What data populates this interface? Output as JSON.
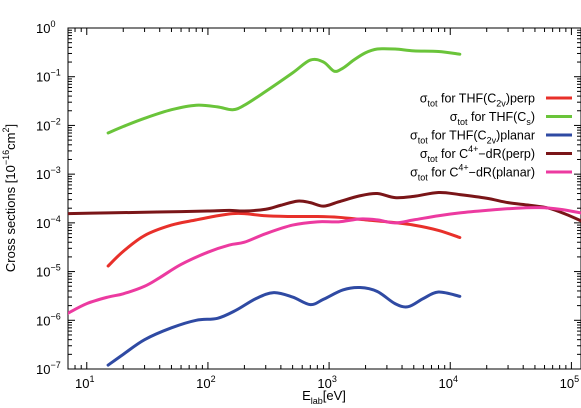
{
  "chart_data": {
    "type": "line",
    "xlabel": {
      "base": "E",
      "sub": "lab",
      "unit": "[eV]"
    },
    "ylabel": {
      "pre": "Cross sections [10",
      "sup": "−16",
      "mid": "cm",
      "sup2": "2",
      "post": "]"
    },
    "xscale": "log",
    "yscale": "log",
    "xlim": [
      7,
      120000
    ],
    "ylim": [
      1e-07,
      1
    ],
    "x_ticks": [
      {
        "base": "10",
        "exp": "1",
        "value": 10
      },
      {
        "base": "10",
        "exp": "2",
        "value": 100
      },
      {
        "base": "10",
        "exp": "3",
        "value": 1000
      },
      {
        "base": "10",
        "exp": "4",
        "value": 10000
      },
      {
        "base": "10",
        "exp": "5",
        "value": 100000
      }
    ],
    "y_ticks": [
      {
        "base": "10",
        "exp": "0",
        "value": 1
      },
      {
        "base": "10",
        "exp": "−1",
        "value": 0.1
      },
      {
        "base": "10",
        "exp": "−2",
        "value": 0.01
      },
      {
        "base": "10",
        "exp": "−3",
        "value": 0.001
      },
      {
        "base": "10",
        "exp": "−4",
        "value": 0.0001
      },
      {
        "base": "10",
        "exp": "−5",
        "value": 1e-05
      },
      {
        "base": "10",
        "exp": "−6",
        "value": 1e-06
      },
      {
        "base": "10",
        "exp": "−7",
        "value": 1e-07
      }
    ],
    "grid": false,
    "legend_position": "top-right",
    "series": [
      {
        "legend": {
          "sym": "σ",
          "symsub": "tot",
          "text": " for THF(C",
          "sub": "2v",
          "tail": ")perp"
        },
        "color": "#e8302a",
        "points": [
          [
            15,
            1.3e-05
          ],
          [
            20,
            2.6e-05
          ],
          [
            30,
            5.5e-05
          ],
          [
            50,
            9e-05
          ],
          [
            80,
            0.000115
          ],
          [
            120,
            0.00014
          ],
          [
            160,
            0.000155
          ],
          [
            200,
            0.000155
          ],
          [
            300,
            0.00014
          ],
          [
            500,
            0.000135
          ],
          [
            800,
            0.000135
          ],
          [
            1200,
            0.00013
          ],
          [
            2000,
            0.000115
          ],
          [
            3000,
            0.000105
          ],
          [
            5000,
            9e-05
          ],
          [
            8000,
            7e-05
          ],
          [
            12000,
            5e-05
          ]
        ]
      },
      {
        "legend": {
          "sym": "σ",
          "symsub": "tot",
          "text": " for THF(C",
          "sub": "s",
          "tail": ")"
        },
        "color": "#6ac43a",
        "points": [
          [
            15,
            0.007
          ],
          [
            20,
            0.0095
          ],
          [
            30,
            0.014
          ],
          [
            50,
            0.021
          ],
          [
            80,
            0.026
          ],
          [
            120,
            0.024
          ],
          [
            160,
            0.021
          ],
          [
            200,
            0.026
          ],
          [
            300,
            0.05
          ],
          [
            500,
            0.12
          ],
          [
            700,
            0.22
          ],
          [
            900,
            0.2
          ],
          [
            1100,
            0.13
          ],
          [
            1300,
            0.15
          ],
          [
            1600,
            0.22
          ],
          [
            2000,
            0.31
          ],
          [
            2500,
            0.37
          ],
          [
            3500,
            0.37
          ],
          [
            5000,
            0.34
          ],
          [
            8000,
            0.33
          ],
          [
            12000,
            0.29
          ]
        ]
      },
      {
        "legend": {
          "sym": "σ",
          "symsub": "tot",
          "text": " for THF(C",
          "sub": "2v",
          "tail": ")planar"
        },
        "color": "#2f4aa3",
        "points": [
          [
            15,
            1.2e-07
          ],
          [
            20,
            2e-07
          ],
          [
            30,
            4e-07
          ],
          [
            50,
            7e-07
          ],
          [
            80,
            1e-06
          ],
          [
            120,
            1.1e-06
          ],
          [
            170,
            1.6e-06
          ],
          [
            250,
            2.8e-06
          ],
          [
            350,
            3.7e-06
          ],
          [
            500,
            3e-06
          ],
          [
            700,
            2.1e-06
          ],
          [
            900,
            2.7e-06
          ],
          [
            1300,
            4.2e-06
          ],
          [
            1800,
            4.7e-06
          ],
          [
            2500,
            3.9e-06
          ],
          [
            3500,
            2.2e-06
          ],
          [
            4500,
            1.9e-06
          ],
          [
            6000,
            2.8e-06
          ],
          [
            8000,
            3.8e-06
          ],
          [
            12000,
            3.1e-06
          ]
        ]
      },
      {
        "legend": {
          "sym": "σ",
          "symsub": "tot",
          "text": " for C",
          "sup": "4+",
          "tail": "−dR(perp)"
        },
        "color": "#7a1518",
        "points": [
          [
            7,
            0.000155
          ],
          [
            15,
            0.00016
          ],
          [
            30,
            0.000165
          ],
          [
            60,
            0.00017
          ],
          [
            100,
            0.000175
          ],
          [
            150,
            0.00018
          ],
          [
            200,
            0.000175
          ],
          [
            300,
            0.00019
          ],
          [
            400,
            0.00023
          ],
          [
            550,
            0.00028
          ],
          [
            700,
            0.00026
          ],
          [
            900,
            0.00022
          ],
          [
            1200,
            0.00027
          ],
          [
            1800,
            0.00036
          ],
          [
            2500,
            0.0004
          ],
          [
            3500,
            0.00033
          ],
          [
            5000,
            0.00035
          ],
          [
            8000,
            0.00042
          ],
          [
            12000,
            0.00038
          ],
          [
            20000,
            0.00032
          ],
          [
            30000,
            0.00026
          ],
          [
            45000,
            0.00023
          ],
          [
            65000,
            0.0002
          ],
          [
            90000,
            0.00015
          ],
          [
            120000,
            0.00011
          ]
        ]
      },
      {
        "legend": {
          "sym": "σ",
          "symsub": "tot",
          "text": " for C",
          "sup": "4+",
          "tail": "−dR(planar)"
        },
        "color": "#ec3aa0",
        "points": [
          [
            7,
            1.4e-06
          ],
          [
            10,
            2.2e-06
          ],
          [
            15,
            3e-06
          ],
          [
            20,
            3.5e-06
          ],
          [
            30,
            5e-06
          ],
          [
            40,
            7.5e-06
          ],
          [
            60,
            1.4e-05
          ],
          [
            100,
            2.5e-05
          ],
          [
            150,
            3.5e-05
          ],
          [
            200,
            4e-05
          ],
          [
            300,
            6e-05
          ],
          [
            500,
            9e-05
          ],
          [
            800,
            0.000105
          ],
          [
            1200,
            0.000105
          ],
          [
            1800,
            0.00012
          ],
          [
            2500,
            0.000115
          ],
          [
            3500,
            0.0001
          ],
          [
            5000,
            0.000115
          ],
          [
            8000,
            0.00014
          ],
          [
            12000,
            0.00016
          ],
          [
            20000,
            0.00018
          ],
          [
            35000,
            0.0002
          ],
          [
            55000,
            0.000205
          ],
          [
            80000,
            0.00019
          ],
          [
            120000,
            0.00016
          ]
        ]
      }
    ]
  }
}
